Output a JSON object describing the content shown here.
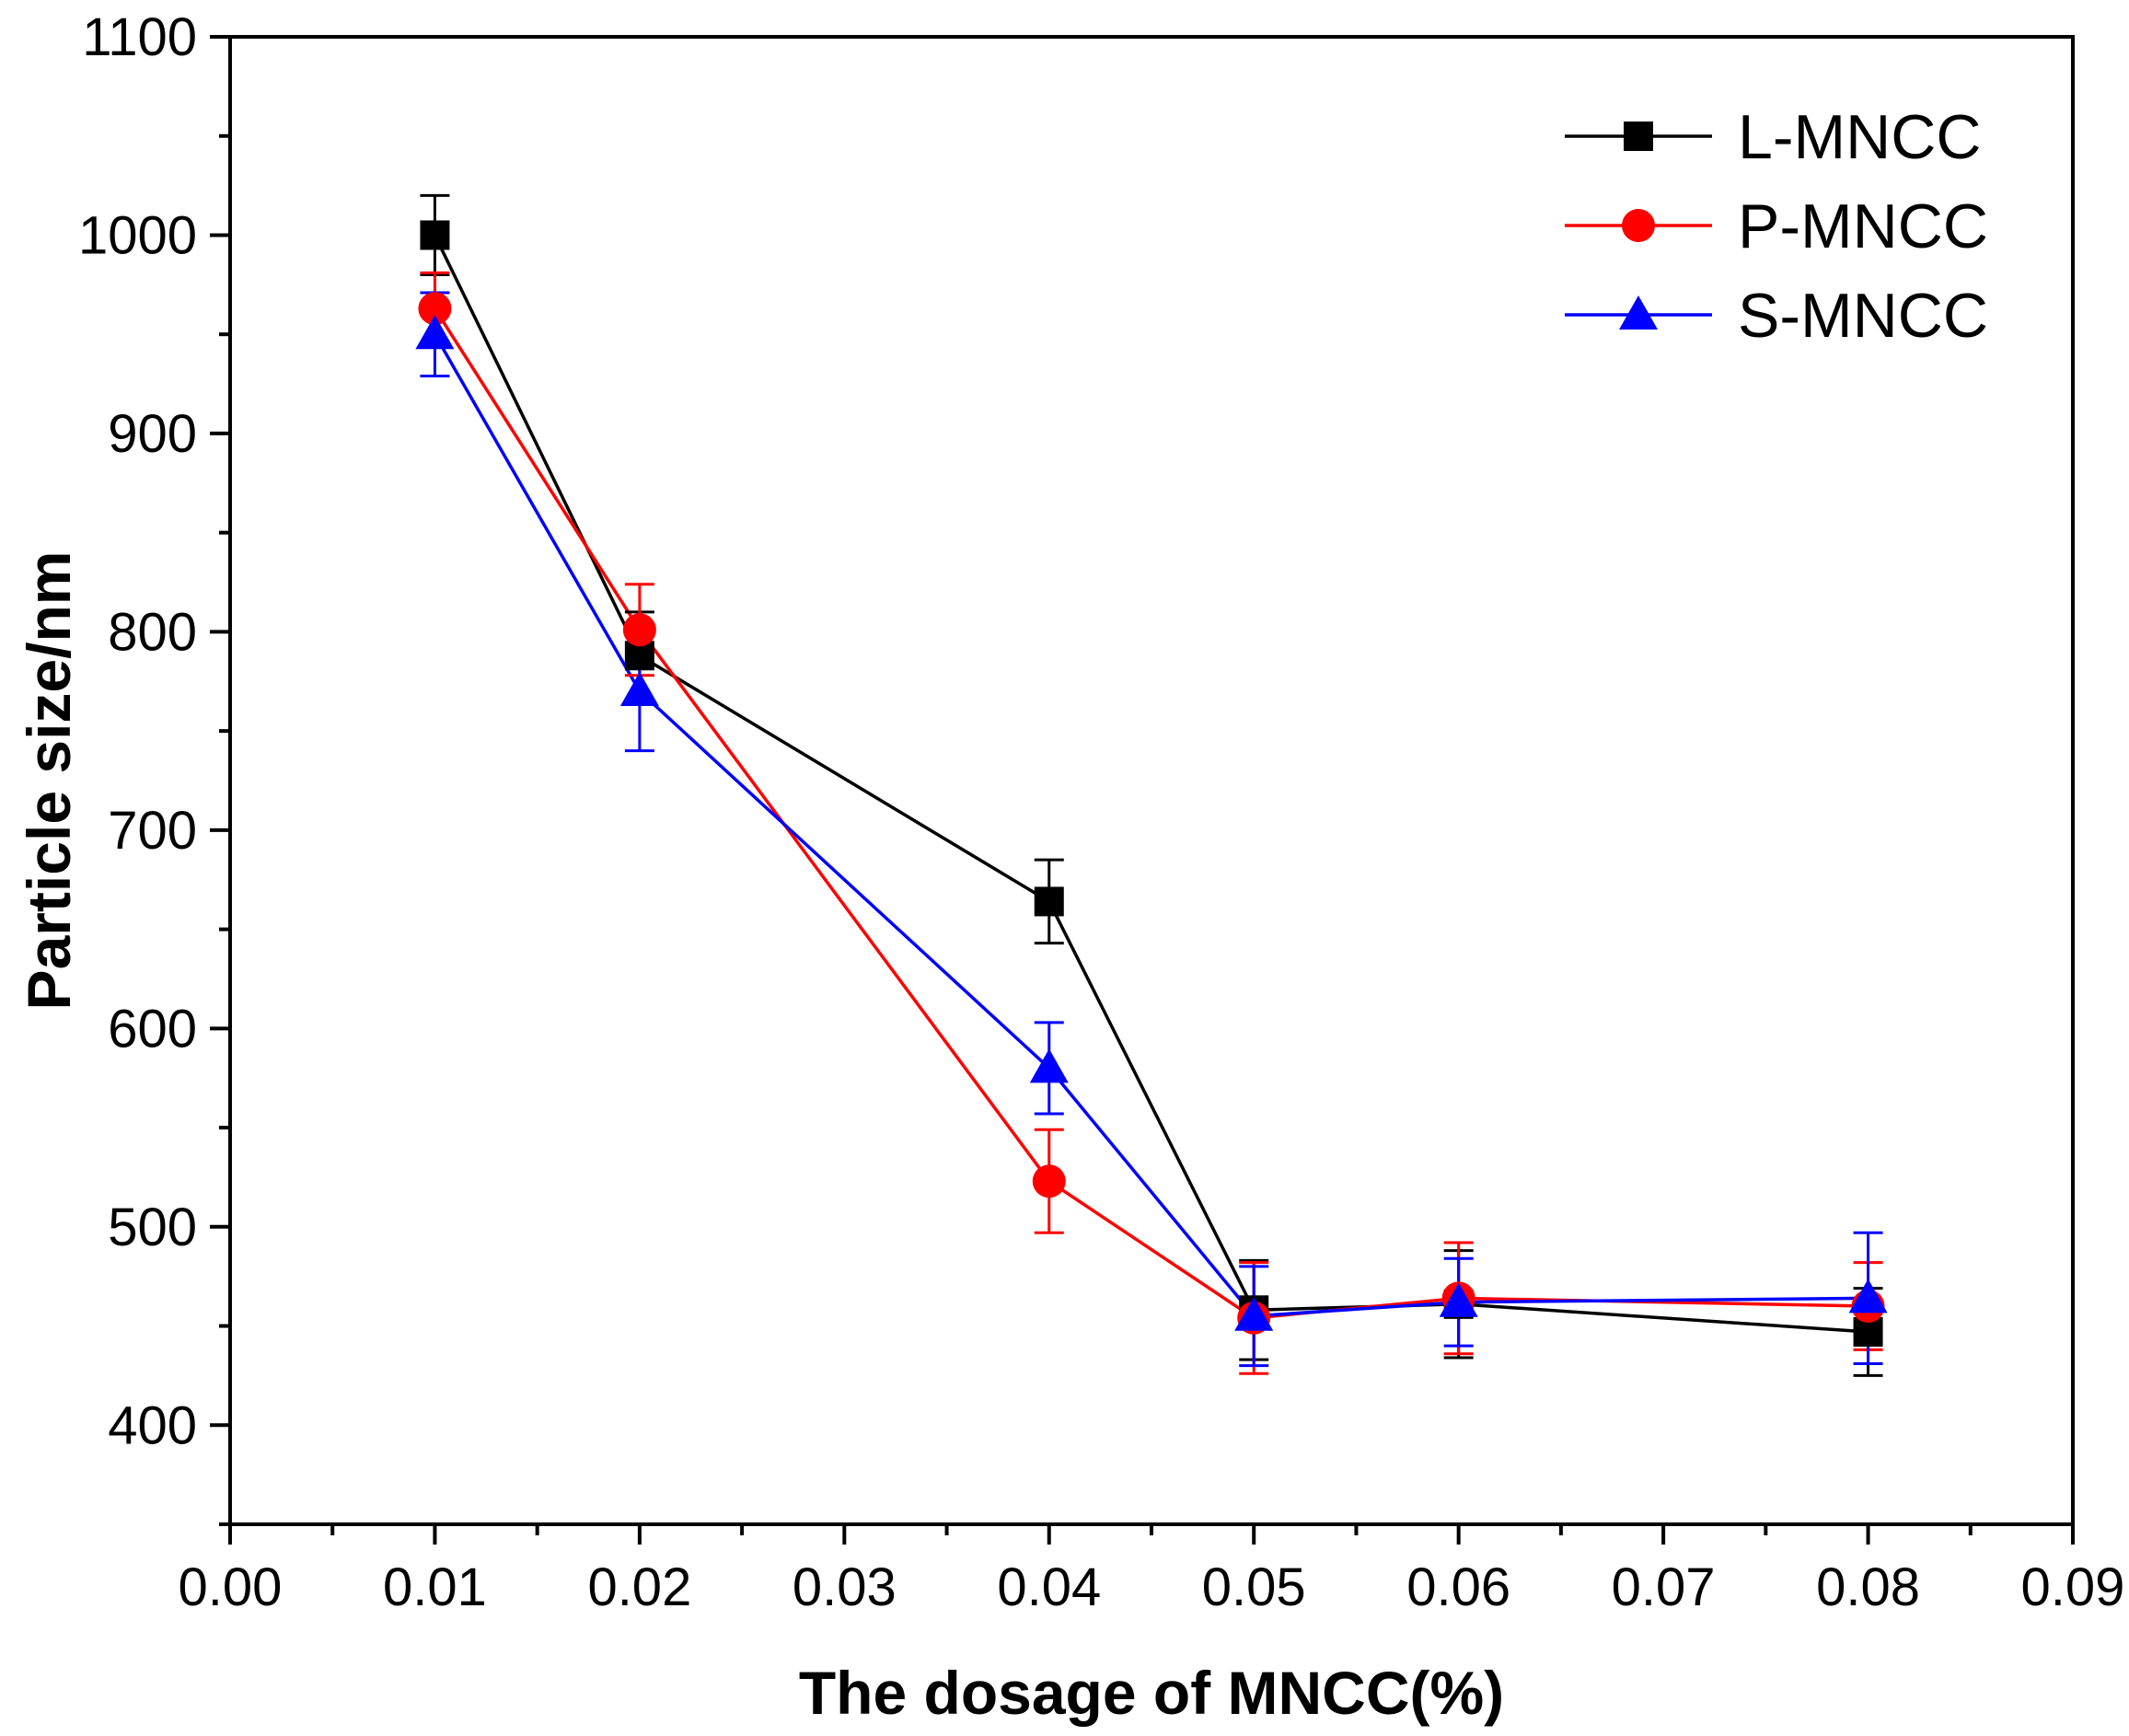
{
  "chart_data": {
    "type": "line",
    "title": "",
    "xlabel": "The dosage of MNCC(%)",
    "ylabel": "Particle size/nm",
    "xlim": [
      0.0,
      0.09
    ],
    "ylim": [
      350,
      1100
    ],
    "x_ticks": [
      "0.00",
      "0.01",
      "0.02",
      "0.03",
      "0.04",
      "0.05",
      "0.06",
      "0.07",
      "0.08",
      "0.09"
    ],
    "x_tick_values": [
      0.0,
      0.01,
      0.02,
      0.03,
      0.04,
      0.05,
      0.06,
      0.07,
      0.08,
      0.09
    ],
    "y_ticks": [
      "400",
      "500",
      "600",
      "700",
      "800",
      "900",
      "1000",
      "1100"
    ],
    "y_tick_values": [
      400,
      500,
      600,
      700,
      800,
      900,
      1000,
      1100
    ],
    "legend_position": "top-right",
    "grid": false,
    "series": [
      {
        "name": "L-MNCC",
        "color": "#000000",
        "marker": "square",
        "x": [
          0.01,
          0.02,
          0.04,
          0.05,
          0.06,
          0.08
        ],
        "y": [
          1000,
          788,
          664,
          458,
          461,
          447
        ],
        "error": [
          20,
          22,
          21,
          25,
          27,
          22
        ]
      },
      {
        "name": "P-MNCC",
        "color": "#ff0000",
        "marker": "circle",
        "x": [
          0.01,
          0.02,
          0.04,
          0.05,
          0.06,
          0.08
        ],
        "y": [
          963,
          801,
          523,
          454,
          464,
          460
        ],
        "error": [
          18,
          23,
          26,
          28,
          28,
          22
        ]
      },
      {
        "name": "S-MNCC",
        "color": "#0000ff",
        "marker": "triangle",
        "x": [
          0.01,
          0.02,
          0.04,
          0.05,
          0.06,
          0.08
        ],
        "y": [
          950,
          770,
          580,
          455,
          462,
          464
        ],
        "error": [
          21,
          30,
          23,
          25,
          22,
          33
        ]
      }
    ]
  }
}
